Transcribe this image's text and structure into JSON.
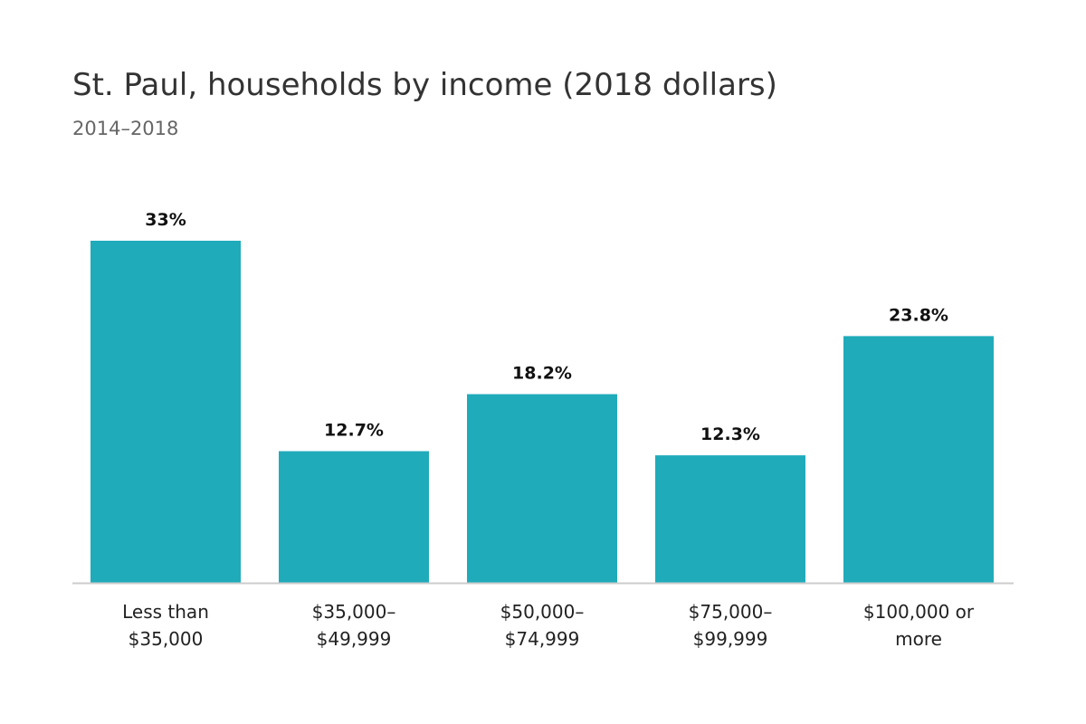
{
  "chart_data": {
    "type": "bar",
    "title": "St. Paul, households by income (2018 dollars)",
    "subtitle": "2014–2018",
    "categories": [
      [
        "Less than",
        "$35,000"
      ],
      [
        "$35,000–",
        "$49,999"
      ],
      [
        "$50,000–",
        "$74,999"
      ],
      [
        "$75,000–",
        "$99,999"
      ],
      [
        "$100,000 or",
        "more"
      ]
    ],
    "values": [
      33,
      12.7,
      18.2,
      12.3,
      23.8
    ],
    "data_labels": [
      "33%",
      "12.7%",
      "18.2%",
      "12.3%",
      "23.8%"
    ],
    "ylim": [
      0,
      33
    ],
    "grid": false,
    "bar_color": "#20abbb",
    "axis_color": "#cccccc"
  }
}
